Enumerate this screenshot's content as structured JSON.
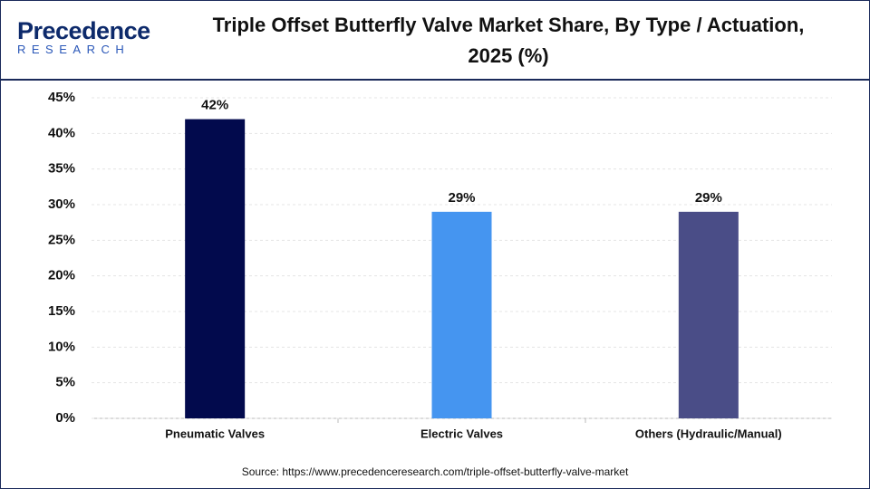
{
  "logo": {
    "name": "Precedence",
    "tagline": "RESEARCH"
  },
  "chart_data": {
    "type": "bar",
    "title": "Triple Offset Butterfly Valve Market Share, By Type / Actuation, 2025 (%)",
    "categories": [
      "Pneumatic Valves",
      "Electric Valves",
      "Others (Hydraulic/Manual)"
    ],
    "values": [
      42,
      29,
      29
    ],
    "value_labels": [
      "42%",
      "29%",
      "29%"
    ],
    "colors": [
      "#020a4d",
      "#4595f0",
      "#4a4d87"
    ],
    "ylim": [
      0,
      45
    ],
    "yticks": [
      {
        "value": 0,
        "label": "0%"
      },
      {
        "value": 5,
        "label": "5%"
      },
      {
        "value": 10,
        "label": "10%"
      },
      {
        "value": 15,
        "label": "15%"
      },
      {
        "value": 20,
        "label": "20%"
      },
      {
        "value": 25,
        "label": "25%"
      },
      {
        "value": 30,
        "label": "30%"
      },
      {
        "value": 35,
        "label": "35%"
      },
      {
        "value": 40,
        "label": "40%"
      },
      {
        "value": 45,
        "label": "45%"
      }
    ],
    "grid": true,
    "source": "Source: https://www.precedenceresearch.com/triple-offset-butterfly-valve-market"
  }
}
